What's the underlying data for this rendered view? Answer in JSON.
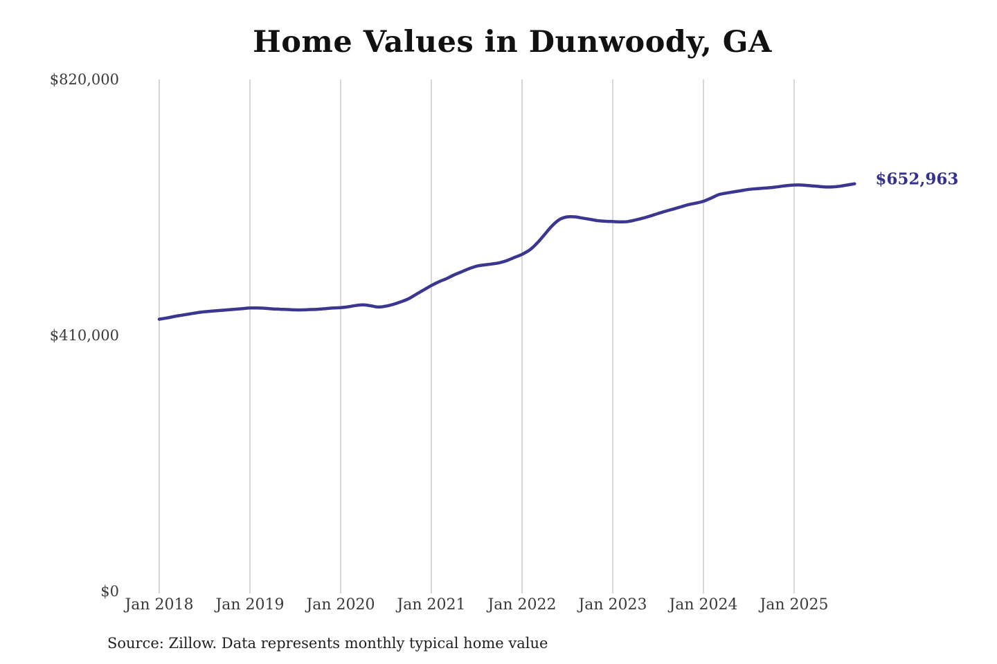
{
  "page": {
    "background_color": "#ffffff"
  },
  "chart_data": {
    "type": "line",
    "title": "Home Values in Dunwoody, GA",
    "series_name": "Monthly typical home value",
    "start_month": "2018-01",
    "cadence": "monthly",
    "values": [
      436000,
      438000,
      440500,
      442500,
      444500,
      446500,
      448000,
      449000,
      450000,
      451000,
      452000,
      453000,
      454000,
      454000,
      453500,
      452500,
      452000,
      451500,
      451000,
      451000,
      451500,
      452000,
      453000,
      454000,
      454500,
      456000,
      458000,
      459000,
      457500,
      455500,
      457000,
      460000,
      464000,
      469000,
      476000,
      483000,
      490000,
      496000,
      501000,
      507000,
      512000,
      517000,
      521000,
      523000,
      524500,
      526500,
      530000,
      535000,
      540000,
      547000,
      558000,
      572000,
      586000,
      596000,
      600000,
      600000,
      598000,
      596000,
      594000,
      593000,
      592500,
      592000,
      592500,
      595000,
      598000,
      601500,
      605500,
      609000,
      612500,
      616000,
      619500,
      622000,
      625000,
      630000,
      635500,
      638000,
      640000,
      642000,
      644000,
      645000,
      646000,
      647000,
      648500,
      650000,
      651000,
      651000,
      650000,
      649000,
      648000,
      648000,
      649000,
      651000,
      652963
    ],
    "end_label": "$652,963",
    "last_value": 652963,
    "ylim": [
      0,
      820000
    ],
    "yticks": [
      {
        "value": 0,
        "label": "$0"
      },
      {
        "value": 410000,
        "label": "$410,000"
      },
      {
        "value": 820000,
        "label": "$820,000"
      }
    ],
    "xticks": [
      {
        "month_index": 0,
        "label": "Jan 2018"
      },
      {
        "month_index": 12,
        "label": "Jan 2019"
      },
      {
        "month_index": 24,
        "label": "Jan 2020"
      },
      {
        "month_index": 36,
        "label": "Jan 2021"
      },
      {
        "month_index": 48,
        "label": "Jan 2022"
      },
      {
        "month_index": 60,
        "label": "Jan 2023"
      },
      {
        "month_index": 72,
        "label": "Jan 2024"
      },
      {
        "month_index": 84,
        "label": "Jan 2025"
      }
    ],
    "grid": "vertical-only",
    "legend": "none",
    "line_color": "#3b3790",
    "end_label_color": "#33308f",
    "grid_color": "#cccccc",
    "tick_label_color": "#3a3a3a",
    "source": "Source: Zillow. Data represents monthly typical home value"
  }
}
